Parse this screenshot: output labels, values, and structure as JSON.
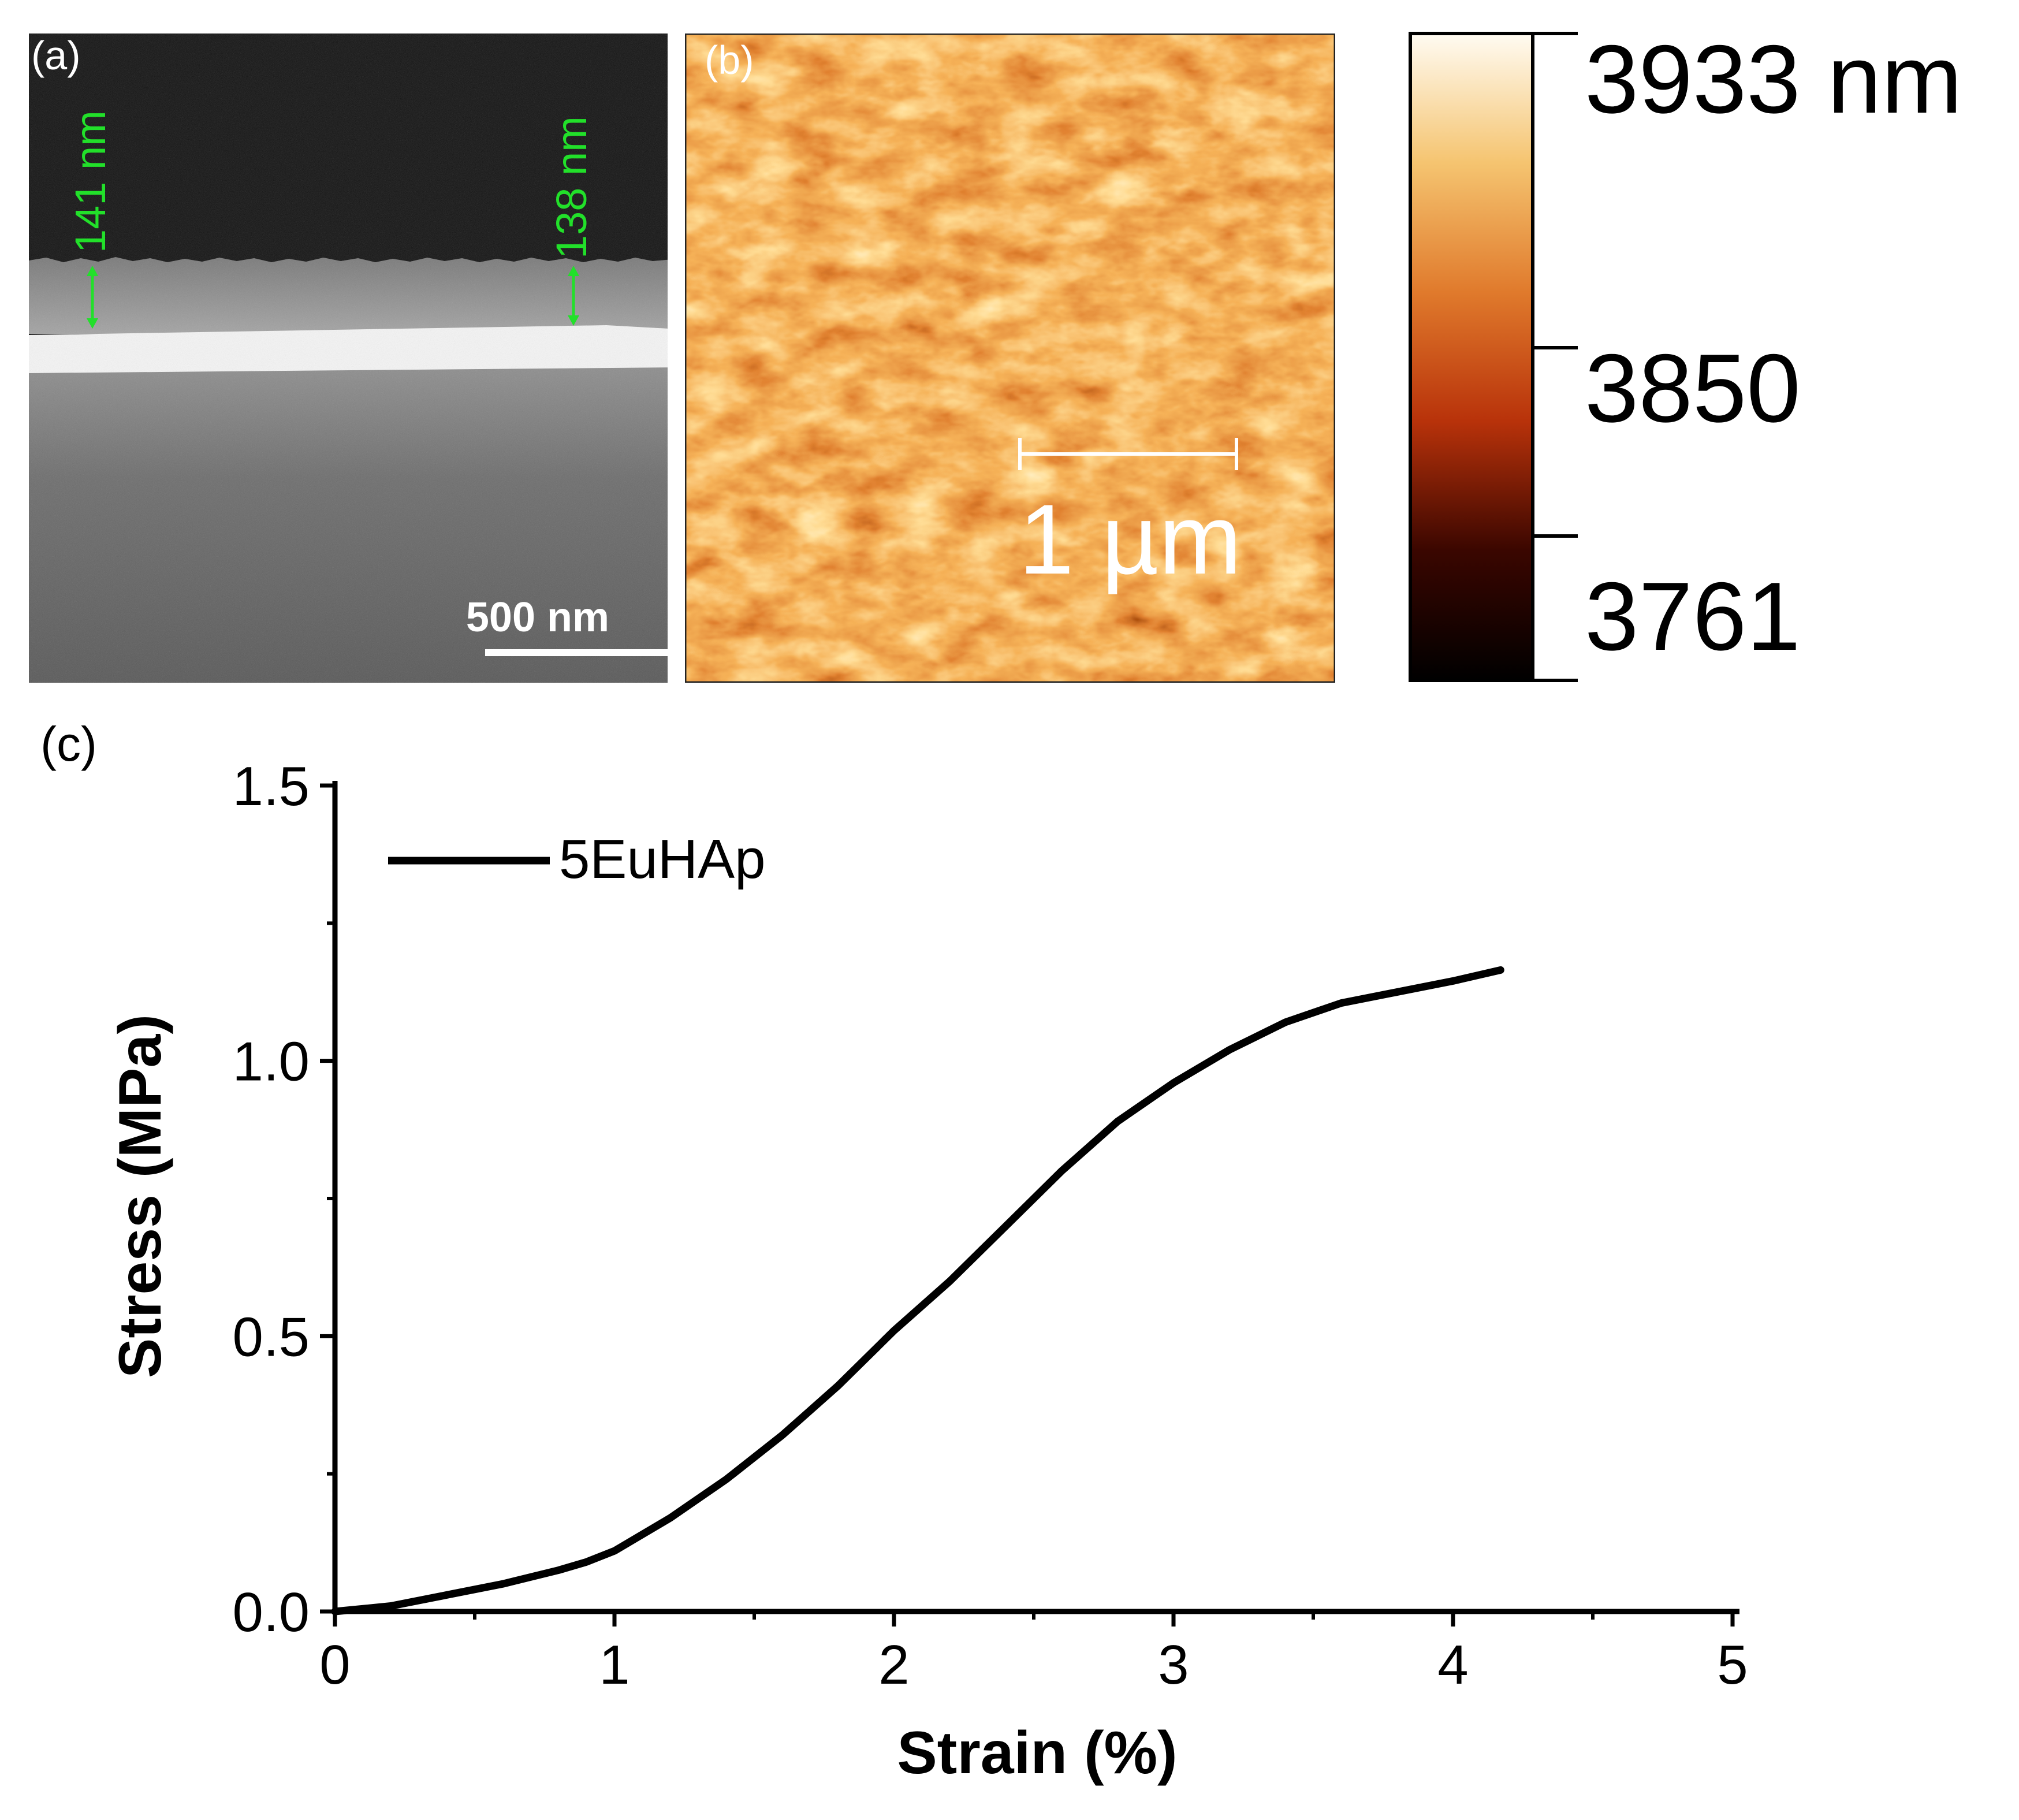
{
  "panel_a": {
    "label": "(a)",
    "thickness_left": "141 nm",
    "thickness_right": "138 nm",
    "scale_bar": "500 nm",
    "annotation_color": "#22e02a"
  },
  "panel_b": {
    "label": "(b)",
    "scale_bar": "1 µm",
    "colorbar": {
      "max_label": "3933 nm",
      "mid_label": "3850",
      "min_label": "3761",
      "colors": [
        "#000000",
        "#3a0600",
        "#b8320a",
        "#e07a2c",
        "#f5c470",
        "#fffbf2"
      ]
    }
  },
  "panel_c": {
    "label": "(c)"
  },
  "chart_data": {
    "type": "line",
    "xlabel": "Strain (%)",
    "ylabel": "Stress (MPa)",
    "xlim": [
      0,
      5
    ],
    "ylim": [
      0,
      1.5
    ],
    "xticks": [
      "0",
      "1",
      "2",
      "3",
      "4",
      "5"
    ],
    "yticks": [
      "0.0",
      "0.5",
      "1.0",
      "1.5"
    ],
    "grid": false,
    "legend_position": "top-left",
    "series": [
      {
        "name": "5EuHAp",
        "color": "#000000",
        "x": [
          0,
          0.2,
          0.4,
          0.6,
          0.8,
          0.9,
          1.0,
          1.2,
          1.4,
          1.6,
          1.8,
          2.0,
          2.2,
          2.4,
          2.6,
          2.8,
          3.0,
          3.2,
          3.4,
          3.6,
          3.8,
          4.0,
          4.17
        ],
        "y": [
          0.0,
          0.01,
          0.03,
          0.05,
          0.075,
          0.09,
          0.11,
          0.17,
          0.24,
          0.32,
          0.41,
          0.51,
          0.6,
          0.7,
          0.8,
          0.89,
          0.96,
          1.02,
          1.07,
          1.105,
          1.125,
          1.145,
          1.165
        ]
      }
    ]
  }
}
